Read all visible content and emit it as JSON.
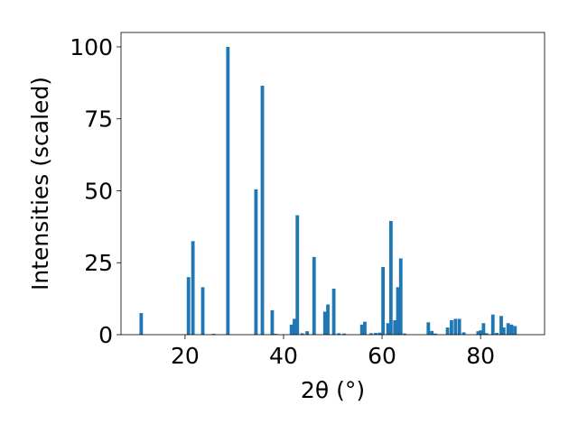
{
  "chart_data": {
    "type": "bar",
    "xlabel": "2θ (°)",
    "ylabel": "Intensities (scaled)",
    "xlim": [
      7,
      93
    ],
    "ylim": [
      0,
      105
    ],
    "x_ticks": [
      20,
      40,
      60,
      80
    ],
    "y_ticks": [
      0,
      25,
      50,
      75,
      100
    ],
    "grid": false,
    "bar_color": "#1f77b4",
    "bar_width_deg": 0.7,
    "x": [
      11.1,
      20.7,
      21.6,
      23.6,
      25.8,
      28.7,
      34.4,
      35.7,
      37.7,
      38.4,
      41.6,
      42.2,
      42.8,
      43.8,
      44.8,
      46.2,
      48.4,
      49.0,
      50.2,
      51.2,
      52.3,
      55.9,
      56.5,
      57.8,
      58.7,
      59.5,
      60.2,
      61.2,
      61.8,
      62.6,
      63.2,
      63.8,
      64.6,
      69.4,
      70.1,
      70.8,
      73.3,
      74.1,
      74.9,
      75.7,
      76.6,
      79.5,
      80.0,
      80.6,
      81.2,
      82.5,
      83.3,
      84.2,
      84.7,
      85.6,
      86.3,
      87.0
    ],
    "values": [
      7.5,
      20,
      32.5,
      16.5,
      0.3,
      100,
      50.5,
      86.5,
      8.5,
      0.3,
      3.5,
      5.5,
      41.5,
      0.5,
      1.2,
      27,
      8,
      10.5,
      16,
      0.5,
      0.4,
      3.5,
      4.5,
      0.5,
      0.6,
      0.7,
      23.5,
      4,
      39.5,
      5,
      16.5,
      26.5,
      0.4,
      4.3,
      1.3,
      0.4,
      2.5,
      5,
      5.5,
      5.5,
      0.8,
      1.2,
      1.5,
      4,
      0.5,
      7,
      0.6,
      6.5,
      2.5,
      4,
      3.5,
      3
    ]
  }
}
